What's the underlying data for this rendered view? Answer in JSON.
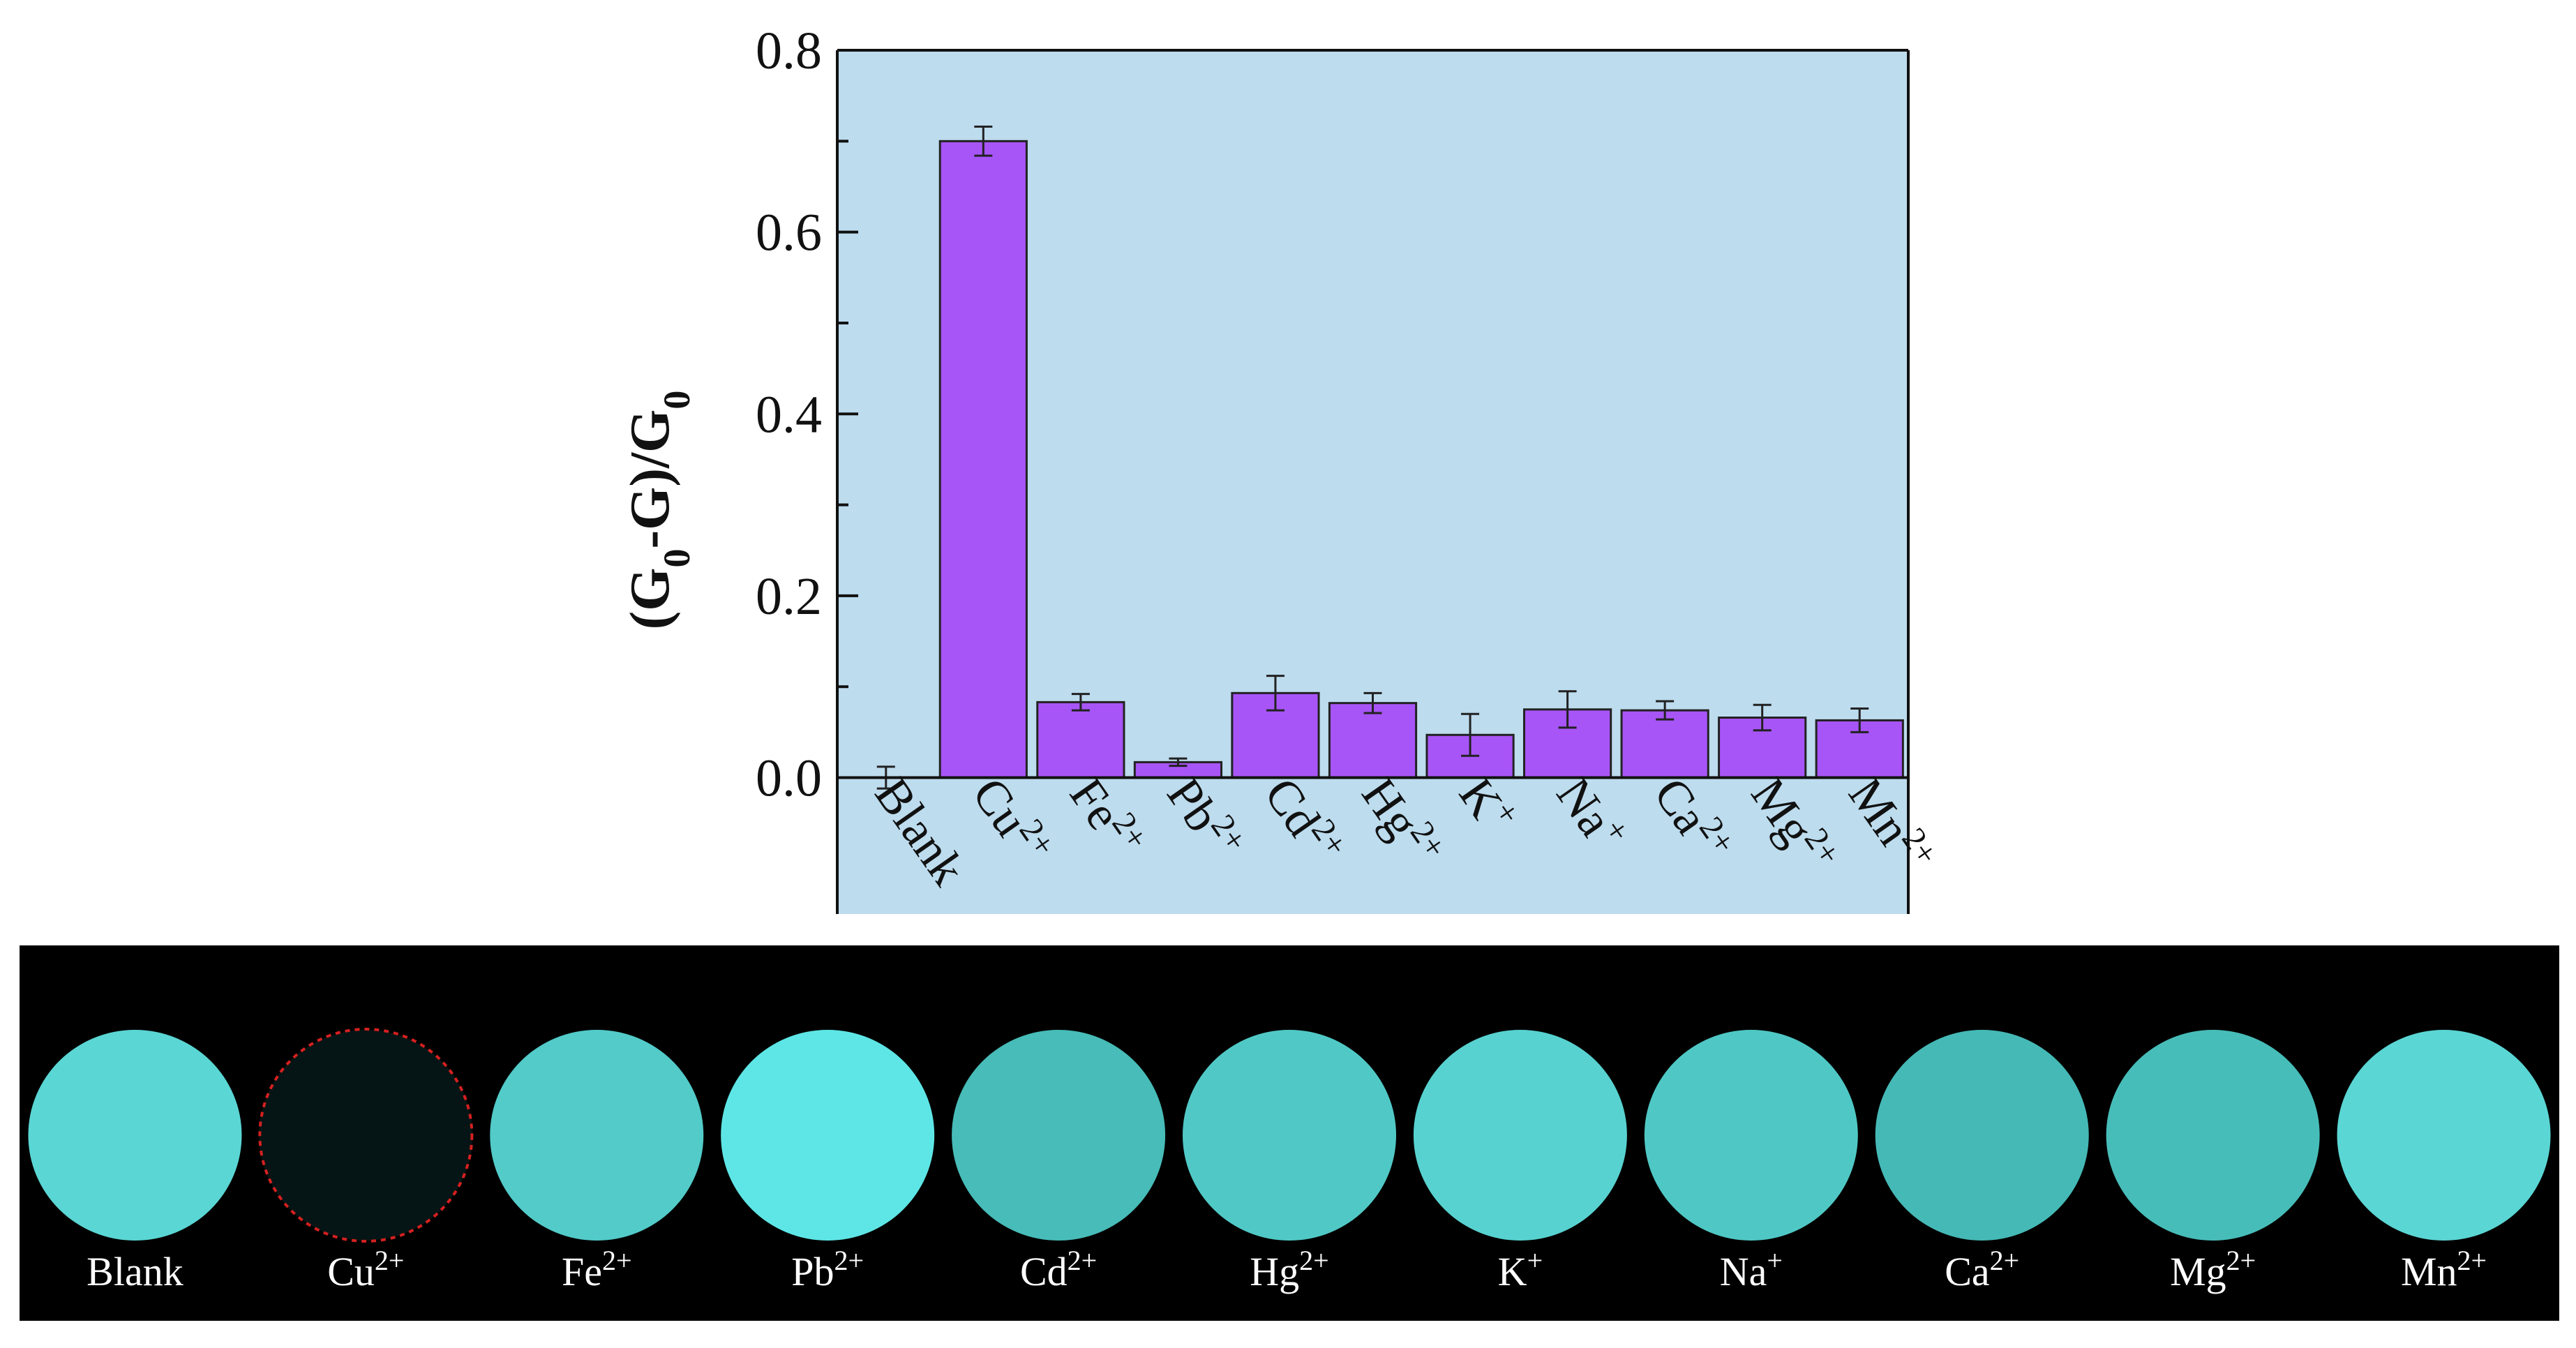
{
  "chart_data": {
    "type": "bar",
    "categories": [
      {
        "base": "Blank",
        "sup": ""
      },
      {
        "base": "Cu",
        "sup": "2+"
      },
      {
        "base": "Fe",
        "sup": "2+"
      },
      {
        "base": "Pb",
        "sup": "2+"
      },
      {
        "base": "Cd",
        "sup": "2+"
      },
      {
        "base": "Hg",
        "sup": "2+"
      },
      {
        "base": "K",
        "sup": "+"
      },
      {
        "base": "Na",
        "sup": "+"
      },
      {
        "base": "Ca",
        "sup": "2+"
      },
      {
        "base": "Mg",
        "sup": "2+"
      },
      {
        "base": "Mn",
        "sup": "2+"
      }
    ],
    "values": [
      0.0,
      0.7,
      0.083,
      0.017,
      0.093,
      0.082,
      0.047,
      0.075,
      0.074,
      0.066,
      0.063
    ],
    "errors": [
      0.012,
      0.016,
      0.009,
      0.004,
      0.019,
      0.011,
      0.023,
      0.02,
      0.01,
      0.014,
      0.013
    ],
    "ylabel": {
      "open": "(G",
      "sub1": "0",
      "mid": "-G)/G",
      "sub2": "0"
    },
    "yticks": [
      "0.0",
      "0.2",
      "0.4",
      "0.6",
      "0.8"
    ],
    "ylim": [
      -0.15,
      0.8
    ],
    "grid": false,
    "bar_color": "#a855f7",
    "plot_background": "#bddcee"
  },
  "photo_strip": {
    "background": "#000000",
    "samples": [
      {
        "base": "Blank",
        "sup": "",
        "color": "#5ad6d4",
        "quenched": false
      },
      {
        "base": "Cu",
        "sup": "2+",
        "color": "#051414",
        "quenched": true
      },
      {
        "base": "Fe",
        "sup": "2+",
        "color": "#52cbc9",
        "quenched": false
      },
      {
        "base": "Pb",
        "sup": "2+",
        "color": "#5ee6e6",
        "quenched": false
      },
      {
        "base": "Cd",
        "sup": "2+",
        "color": "#47bcb8",
        "quenched": false
      },
      {
        "base": "Hg",
        "sup": "2+",
        "color": "#50c9c6",
        "quenched": false
      },
      {
        "base": "K",
        "sup": "+",
        "color": "#57d2d0",
        "quenched": false
      },
      {
        "base": "Na",
        "sup": "+",
        "color": "#4fc8c5",
        "quenched": false
      },
      {
        "base": "Ca",
        "sup": "2+",
        "color": "#45b9b6",
        "quenched": false
      },
      {
        "base": "Mg",
        "sup": "2+",
        "color": "#47bdb9",
        "quenched": false
      },
      {
        "base": "Mn",
        "sup": "2+",
        "color": "#5ad6d4",
        "quenched": false
      }
    ],
    "highlight_color": "#d42020"
  }
}
